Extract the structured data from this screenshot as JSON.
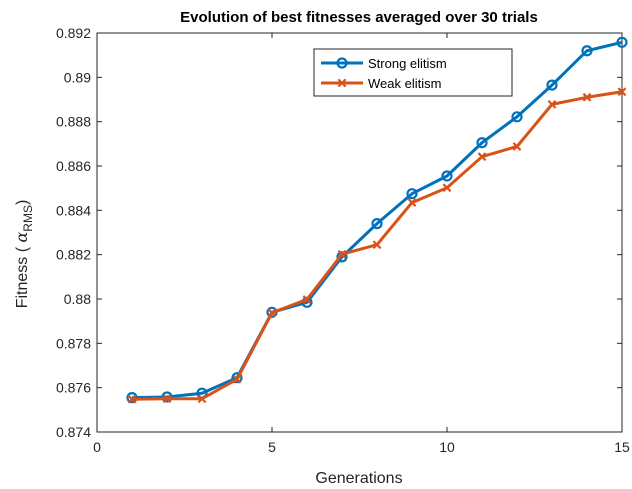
{
  "chart_data": {
    "type": "line",
    "title": "Evolution of best fitnesses averaged over 30 trials",
    "xlabel": "Generations",
    "ylabel_prefix": "Fitness ( ",
    "ylabel_symbol": "α",
    "ylabel_subscript": "RMS",
    "ylabel_suffix": ")",
    "xlim": [
      0,
      15
    ],
    "ylim": [
      0.874,
      0.892
    ],
    "xticks": [
      0,
      5,
      10,
      15
    ],
    "xtick_labels": [
      "0",
      "5",
      "10",
      "15"
    ],
    "yticks": [
      0.874,
      0.876,
      0.878,
      0.88,
      0.882,
      0.884,
      0.886,
      0.888,
      0.89,
      0.892
    ],
    "ytick_labels": [
      "0.874",
      "0.876",
      "0.878",
      "0.88",
      "0.882",
      "0.884",
      "0.886",
      "0.888",
      "0.89",
      "0.892"
    ],
    "grid": false,
    "legend_position": "top-right",
    "x": [
      1,
      2,
      3,
      4,
      5,
      6,
      7,
      8,
      9,
      10,
      11,
      12,
      13,
      14,
      15
    ],
    "series": [
      {
        "name": "Strong elitism",
        "color": "#0072BD",
        "marker": "circle",
        "values": [
          0.87555,
          0.87558,
          0.87575,
          0.87645,
          0.8794,
          0.87985,
          0.8819,
          0.8834,
          0.88475,
          0.88555,
          0.88705,
          0.88822,
          0.88965,
          0.8912,
          0.89158
        ]
      },
      {
        "name": "Weak elitism",
        "color": "#D95319",
        "marker": "x",
        "values": [
          0.87548,
          0.8755,
          0.8755,
          0.87638,
          0.87938,
          0.87998,
          0.88202,
          0.88245,
          0.88435,
          0.88502,
          0.88642,
          0.88688,
          0.88878,
          0.8891,
          0.88935
        ]
      }
    ]
  }
}
